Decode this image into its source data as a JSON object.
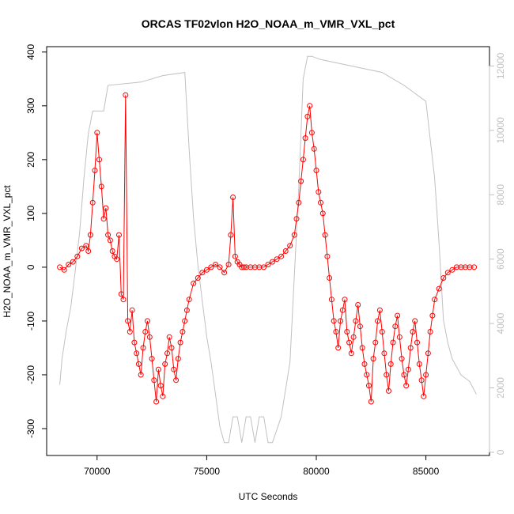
{
  "chart_data": {
    "type": "line",
    "title": "ORCAS TF02vlon H2O_NOAA_m_VMR_VXL_pct",
    "xlabel": "UTC Seconds",
    "ylabel": "H2O_NOAA_m_VMR_VXL_pct",
    "xlim": [
      67700,
      87900
    ],
    "ylim": [
      -350,
      410
    ],
    "y2lim": [
      -100,
      12600
    ],
    "x_ticks": [
      "70000",
      "75000",
      "80000",
      "85000"
    ],
    "y_ticks": [
      "-300",
      "-200",
      "-100",
      "0",
      "100",
      "200",
      "300",
      "400"
    ],
    "y2_ticks": [
      "0",
      "2000",
      "4000",
      "6000",
      "8000",
      "10000",
      "12000"
    ],
    "grid": false,
    "series": [
      {
        "color": "#ff0000",
        "style": "line+open-circles",
        "axis": "left",
        "x": [
          68300,
          68500,
          68700,
          68900,
          69100,
          69300,
          69500,
          69600,
          69700,
          69800,
          69900,
          70000,
          70100,
          70200,
          70300,
          70400,
          70500,
          70600,
          70700,
          70800,
          70900,
          71000,
          71100,
          71200,
          71300,
          71400,
          71500,
          71600,
          71700,
          71800,
          71900,
          72000,
          72100,
          72200,
          72300,
          72400,
          72500,
          72600,
          72700,
          72800,
          72900,
          73000,
          73100,
          73200,
          73300,
          73400,
          73500,
          73600,
          73700,
          73800,
          73900,
          74000,
          74100,
          74200,
          74400,
          74600,
          74800,
          75000,
          75200,
          75400,
          75600,
          75800,
          76000,
          76100,
          76200,
          76300,
          76400,
          76500,
          76600,
          76700,
          76800,
          77000,
          77200,
          77400,
          77600,
          77800,
          78000,
          78200,
          78400,
          78600,
          78800,
          79000,
          79100,
          79200,
          79300,
          79400,
          79500,
          79600,
          79700,
          79800,
          79900,
          80000,
          80100,
          80200,
          80300,
          80400,
          80500,
          80600,
          80700,
          80800,
          80900,
          81000,
          81100,
          81200,
          81300,
          81400,
          81500,
          81600,
          81700,
          81800,
          81900,
          82000,
          82100,
          82200,
          82300,
          82400,
          82500,
          82600,
          82700,
          82800,
          82900,
          83000,
          83100,
          83200,
          83300,
          83400,
          83500,
          83600,
          83700,
          83800,
          83900,
          84000,
          84100,
          84200,
          84300,
          84400,
          84500,
          84600,
          84700,
          84800,
          84900,
          85000,
          85100,
          85200,
          85300,
          85400,
          85600,
          85800,
          86000,
          86200,
          86400,
          86600,
          86800,
          87000,
          87200
        ],
        "y": [
          0,
          -5,
          5,
          10,
          20,
          35,
          40,
          30,
          60,
          120,
          180,
          250,
          200,
          150,
          90,
          110,
          60,
          50,
          30,
          20,
          15,
          60,
          -50,
          -60,
          320,
          -100,
          -120,
          -80,
          -140,
          -160,
          -180,
          -200,
          -150,
          -120,
          -100,
          -130,
          -170,
          -210,
          -250,
          -190,
          -220,
          -240,
          -180,
          -160,
          -130,
          -150,
          -190,
          -210,
          -170,
          -140,
          -120,
          -100,
          -80,
          -60,
          -30,
          -20,
          -10,
          -5,
          0,
          5,
          0,
          -10,
          5,
          60,
          130,
          20,
          10,
          5,
          0,
          0,
          0,
          0,
          0,
          0,
          0,
          5,
          10,
          15,
          20,
          30,
          40,
          60,
          90,
          120,
          160,
          200,
          240,
          280,
          300,
          250,
          220,
          180,
          140,
          120,
          100,
          60,
          20,
          -20,
          -60,
          -100,
          -120,
          -150,
          -100,
          -80,
          -60,
          -120,
          -140,
          -160,
          -130,
          -100,
          -70,
          -110,
          -150,
          -180,
          -200,
          -220,
          -250,
          -170,
          -140,
          -100,
          -80,
          -120,
          -160,
          -200,
          -230,
          -180,
          -140,
          -110,
          -90,
          -130,
          -170,
          -200,
          -220,
          -190,
          -150,
          -120,
          -100,
          -140,
          -180,
          -210,
          -240,
          -200,
          -160,
          -120,
          -90,
          -60,
          -40,
          -20,
          -10,
          -5,
          0,
          0,
          0,
          0,
          0
        ]
      },
      {
        "color": "#c0c0c0",
        "style": "line",
        "axis": "right",
        "x": [
          68300,
          68400,
          68600,
          68800,
          69000,
          69200,
          69400,
          69600,
          69800,
          70000,
          70300,
          70500,
          72000,
          73000,
          74000,
          74200,
          74400,
          74600,
          74800,
          75000,
          75200,
          75400,
          75600,
          75800,
          76000,
          76200,
          76400,
          76600,
          76800,
          77000,
          77200,
          77400,
          77600,
          77800,
          78000,
          78400,
          78800,
          79200,
          79400,
          79600,
          79800,
          80200,
          83000,
          84000,
          85000,
          85400,
          85600,
          85800,
          86000,
          86200,
          86600,
          87000,
          87300
        ],
        "y": [
          2100,
          2900,
          3800,
          4500,
          5600,
          6800,
          8500,
          9900,
          10600,
          10600,
          10600,
          11400,
          11500,
          11700,
          11800,
          9400,
          7300,
          5800,
          4700,
          3600,
          2800,
          1800,
          800,
          300,
          300,
          1100,
          1100,
          300,
          1100,
          1100,
          300,
          1100,
          1100,
          300,
          300,
          1100,
          2800,
          8200,
          11600,
          12300,
          12300,
          12200,
          11800,
          11400,
          10900,
          8500,
          6500,
          4100,
          3400,
          2900,
          2400,
          2200,
          1800
        ]
      }
    ]
  }
}
